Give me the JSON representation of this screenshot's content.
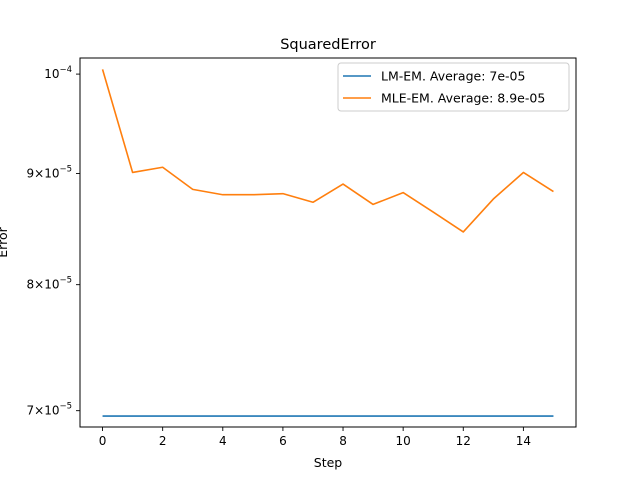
{
  "chart_data": {
    "type": "line",
    "title": "SquaredError",
    "xlabel": "Step",
    "ylabel": "Error",
    "yscale": "log",
    "xlim": [
      -0.75,
      15.75
    ],
    "ylim": [
      6.88e-05,
      0.00010172
    ],
    "x": [
      0,
      1,
      2,
      3,
      4,
      5,
      6,
      7,
      8,
      9,
      10,
      11,
      12,
      13,
      14,
      15
    ],
    "series": [
      {
        "name": "LM-EM. Average: 7e-05",
        "color": "#1f77b4",
        "values": [
          6.96e-05,
          6.96e-05,
          6.96e-05,
          6.96e-05,
          6.96e-05,
          6.96e-05,
          6.96e-05,
          6.96e-05,
          6.96e-05,
          6.96e-05,
          6.96e-05,
          6.96e-05,
          6.96e-05,
          6.96e-05,
          6.96e-05,
          6.96e-05
        ]
      },
      {
        "name": "MLE-EM. Average: 8.9e-05",
        "color": "#ff7f0e",
        "values": [
          0.0001005,
          9.01e-05,
          9.06e-05,
          8.85e-05,
          8.8e-05,
          8.8e-05,
          8.81e-05,
          8.73e-05,
          8.9e-05,
          8.71e-05,
          8.82e-05,
          8.64e-05,
          8.46e-05,
          8.76e-05,
          9.01e-05,
          8.83e-05
        ]
      }
    ],
    "xticks": [
      0,
      2,
      4,
      6,
      8,
      10,
      12,
      14
    ],
    "yticks": [
      {
        "value": 7e-05,
        "mant": "7",
        "exp": "−5"
      },
      {
        "value": 8e-05,
        "mant": "8",
        "exp": "−5"
      },
      {
        "value": 9e-05,
        "mant": "9",
        "exp": "−5"
      },
      {
        "value": 0.0001,
        "mant": "",
        "exp": "−4"
      }
    ],
    "legend": "top-right",
    "grid": false
  }
}
